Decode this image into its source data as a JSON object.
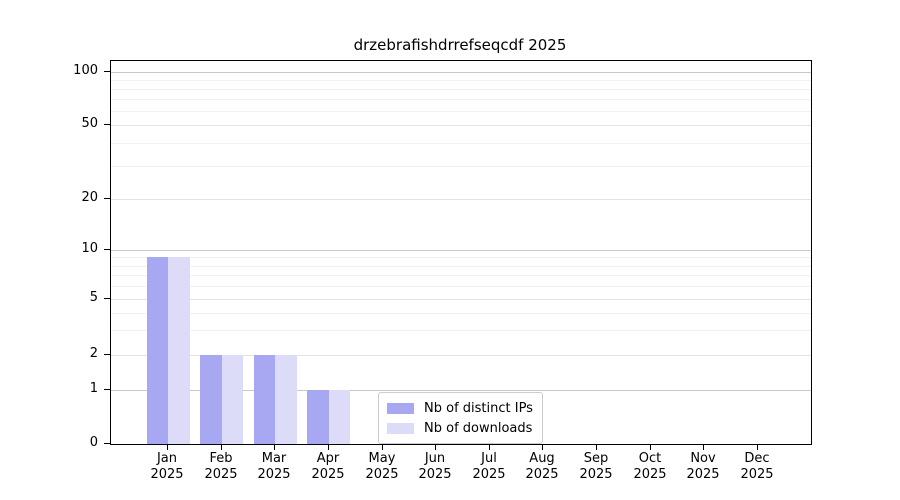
{
  "chart_data": {
    "type": "bar",
    "title": "drzebrafishdrrefseqcdf 2025",
    "x_months": [
      "Jan",
      "Feb",
      "Mar",
      "Apr",
      "May",
      "Jun",
      "Jul",
      "Aug",
      "Sep",
      "Oct",
      "Nov",
      "Dec"
    ],
    "x_year": "2025",
    "series": [
      {
        "name": "Nb of distinct IPs",
        "color": "#a8a8f2",
        "values": [
          9,
          2,
          2,
          1,
          0,
          0,
          0,
          0,
          0,
          0,
          0,
          0
        ]
      },
      {
        "name": "Nb of downloads",
        "color": "#dcdcf8",
        "values": [
          9,
          2,
          2,
          1,
          0,
          0,
          0,
          0,
          0,
          0,
          0,
          0
        ]
      }
    ],
    "y_axis": {
      "scale": "log-like",
      "tick_values": [
        0,
        1,
        2,
        5,
        10,
        20,
        50,
        100
      ],
      "tick_labels": [
        "0",
        "1",
        "2",
        "5",
        "10",
        "20",
        "50",
        "100"
      ],
      "emphasized_gridline_values": [
        1,
        10,
        100
      ],
      "minor_gridline_values": [
        3,
        4,
        6,
        7,
        8,
        9,
        30,
        40,
        60,
        70,
        80,
        90
      ],
      "ylim": [
        0,
        100
      ]
    },
    "legend": {
      "position": "bottom-center",
      "entries": [
        "Nb of distinct IPs",
        "Nb of downloads"
      ]
    },
    "grid": "horizontal",
    "colors": {
      "spine": "#000000",
      "background": "#ffffff",
      "grid_major": "#c9c9c9",
      "grid_mid": "#e3e3e3",
      "grid_minor": "#f1f1f1",
      "text": "#000000"
    }
  }
}
